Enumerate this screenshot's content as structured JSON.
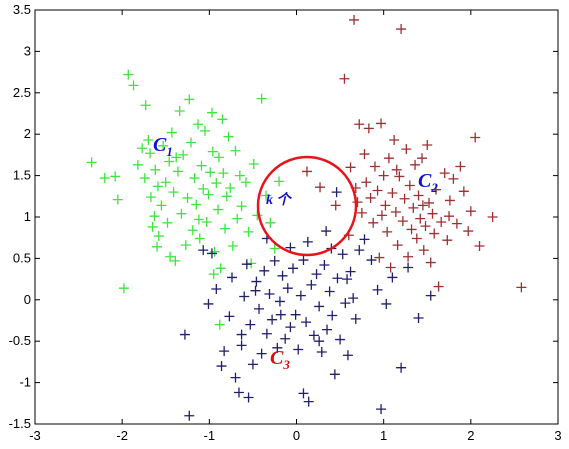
{
  "chart_data": {
    "type": "scatter",
    "title": "",
    "xlabel": "",
    "ylabel": "",
    "xlim": [
      -3,
      3
    ],
    "ylim": [
      -1.5,
      3.5
    ],
    "x_ticks": [
      "-3",
      "-2",
      "-1",
      "0",
      "1",
      "2",
      "3"
    ],
    "y_ticks": [
      "-1.5",
      "-1",
      "-0.5",
      "0",
      "0.5",
      "1",
      "1.5",
      "2",
      "2.5",
      "3",
      "3.5"
    ],
    "grid": false,
    "marker": "+",
    "series": [
      {
        "color": "#3ee53e",
        "points": [
          [
            -2.35,
            1.66
          ],
          [
            -2.2,
            1.47
          ],
          [
            -2.08,
            1.49
          ],
          [
            -2.05,
            1.21
          ],
          [
            -1.98,
            0.14
          ],
          [
            -1.93,
            2.72
          ],
          [
            -1.87,
            2.59
          ],
          [
            -1.77,
            1.83
          ],
          [
            -1.74,
            1.47
          ],
          [
            -1.73,
            2.35
          ],
          [
            -1.7,
            1.93
          ],
          [
            -1.68,
            1.77
          ],
          [
            -1.67,
            1.24
          ],
          [
            -1.65,
            0.88
          ],
          [
            -1.63,
            1.01
          ],
          [
            -1.62,
            1.57
          ],
          [
            -1.59,
            1.37
          ],
          [
            -1.58,
            0.77
          ],
          [
            -1.55,
            1.14
          ],
          [
            -1.53,
            1.86
          ],
          [
            -1.5,
            1.42
          ],
          [
            -1.48,
            0.93
          ],
          [
            -1.46,
            1.67
          ],
          [
            -1.45,
            0.52
          ],
          [
            -1.43,
            2.02
          ],
          [
            -1.41,
            1.3
          ],
          [
            -1.39,
            0.47
          ],
          [
            -1.36,
            1.55
          ],
          [
            -1.34,
            2.28
          ],
          [
            -1.32,
            1.04
          ],
          [
            -1.3,
            1.75
          ],
          [
            -1.27,
            0.66
          ],
          [
            -1.25,
            1.23
          ],
          [
            -1.23,
            2.42
          ],
          [
            -1.21,
            1.9
          ],
          [
            -1.19,
            0.84
          ],
          [
            -1.17,
            1.47
          ],
          [
            -1.15,
            1.15
          ],
          [
            -1.13,
            2.12
          ],
          [
            -1.11,
            0.74
          ],
          [
            -1.09,
            1.62
          ],
          [
            -1.07,
            1.34
          ],
          [
            -1.05,
            2.04
          ],
          [
            -1.03,
            0.94
          ],
          [
            -1.01,
            1.27
          ],
          [
            -0.99,
            1.54
          ],
          [
            -0.97,
            2.26
          ],
          [
            -0.96,
            1.79
          ],
          [
            -0.94,
            0.58
          ],
          [
            -0.92,
            1.41
          ],
          [
            -0.9,
            1.09
          ],
          [
            -0.89,
            1.72
          ],
          [
            -0.87,
            0.38
          ],
          [
            -0.85,
            2.18
          ],
          [
            -0.84,
            1.53
          ],
          [
            -0.82,
            0.86
          ],
          [
            -0.8,
            1.25
          ],
          [
            -0.78,
            1.97
          ],
          [
            -0.76,
            1.35
          ],
          [
            -0.73,
            0.65
          ],
          [
            -0.7,
            1.8
          ],
          [
            -0.68,
            0.98
          ],
          [
            -0.65,
            1.5
          ],
          [
            -0.63,
            1.13
          ],
          [
            -0.58,
            1.42
          ],
          [
            -0.55,
            0.82
          ],
          [
            -0.52,
            0.44
          ],
          [
            -0.49,
            1.64
          ],
          [
            -0.45,
            1.02
          ],
          [
            -0.4,
            2.43
          ],
          [
            -0.35,
            1.26
          ],
          [
            -0.3,
            0.93
          ],
          [
            -0.25,
            0.62
          ],
          [
            -0.2,
            1.43
          ],
          [
            -0.95,
            0.31
          ],
          [
            -0.88,
            -0.3
          ],
          [
            -1.12,
            0.97
          ],
          [
            -1.38,
            1.72
          ],
          [
            -1.82,
            1.63
          ],
          [
            -1.6,
            0.64
          ]
        ]
      },
      {
        "color": "#9e3030",
        "points": [
          [
            0.55,
            2.67
          ],
          [
            0.62,
            1.6
          ],
          [
            0.66,
            3.38
          ],
          [
            0.68,
            1.35
          ],
          [
            0.7,
            1.18
          ],
          [
            0.72,
            2.12
          ],
          [
            0.75,
            1.05
          ],
          [
            0.78,
            1.76
          ],
          [
            0.8,
            1.42
          ],
          [
            0.83,
            2.07
          ],
          [
            0.85,
            1.23
          ],
          [
            0.88,
            0.93
          ],
          [
            0.9,
            1.61
          ],
          [
            0.93,
            1.32
          ],
          [
            0.95,
            0.51
          ],
          [
            0.97,
            2.13
          ],
          [
            1.0,
            1.5
          ],
          [
            1.02,
            1.14
          ],
          [
            1.04,
            0.82
          ],
          [
            1.06,
            1.71
          ],
          [
            1.08,
            0.39
          ],
          [
            1.1,
            1.29
          ],
          [
            1.12,
            1.93
          ],
          [
            1.14,
            1.06
          ],
          [
            1.16,
            0.66
          ],
          [
            1.18,
            1.49
          ],
          [
            1.2,
            3.27
          ],
          [
            1.22,
            0.95
          ],
          [
            1.24,
            1.22
          ],
          [
            1.26,
            1.82
          ],
          [
            1.28,
            0.52
          ],
          [
            1.3,
            1.38
          ],
          [
            1.32,
            0.85
          ],
          [
            1.34,
            1.11
          ],
          [
            1.36,
            1.63
          ],
          [
            1.38,
            0.74
          ],
          [
            1.4,
            1.26
          ],
          [
            1.42,
            0.98
          ],
          [
            1.44,
            1.71
          ],
          [
            1.46,
            0.6
          ],
          [
            1.48,
            0.89
          ],
          [
            1.5,
            1.87
          ],
          [
            1.52,
            1.17
          ],
          [
            1.54,
            0.45
          ],
          [
            1.56,
            1.04
          ],
          [
            1.58,
            0.8
          ],
          [
            1.6,
            1.33
          ],
          [
            1.63,
            0.16
          ],
          [
            1.66,
            0.94
          ],
          [
            1.7,
            1.53
          ],
          [
            1.73,
            0.72
          ],
          [
            1.76,
            1.2
          ],
          [
            1.8,
            1.46
          ],
          [
            1.84,
            0.92
          ],
          [
            1.88,
            1.61
          ],
          [
            1.92,
            1.31
          ],
          [
            1.97,
            0.83
          ],
          [
            2.0,
            1.07
          ],
          [
            2.05,
            1.96
          ],
          [
            2.1,
            0.65
          ],
          [
            2.25,
            1.0
          ],
          [
            2.58,
            0.15
          ],
          [
            1.15,
            1.57
          ],
          [
            0.98,
            1.02
          ],
          [
            1.45,
            1.14
          ],
          [
            1.75,
            1.01
          ],
          [
            0.45,
            1.14
          ],
          [
            0.27,
            1.36
          ],
          [
            0.12,
            1.55
          ],
          [
            0.6,
            0.78
          ]
        ]
      },
      {
        "color": "#1f1f6e",
        "points": [
          [
            -1.28,
            -0.42
          ],
          [
            -1.23,
            -1.4
          ],
          [
            -1.01,
            -0.05
          ],
          [
            -0.97,
            0.56
          ],
          [
            -0.92,
            0.13
          ],
          [
            -0.86,
            -0.8
          ],
          [
            -0.83,
            -0.62
          ],
          [
            -0.77,
            -0.2
          ],
          [
            -0.74,
            0.27
          ],
          [
            -0.7,
            -0.94
          ],
          [
            -0.66,
            -1.12
          ],
          [
            -0.63,
            -0.55
          ],
          [
            -0.6,
            0.04
          ],
          [
            -0.57,
            0.43
          ],
          [
            -0.53,
            -0.3
          ],
          [
            -0.5,
            -0.78
          ],
          [
            -0.46,
            0.22
          ],
          [
            -0.43,
            -0.11
          ],
          [
            -0.4,
            -0.65
          ],
          [
            -0.37,
            0.35
          ],
          [
            -0.34,
            -0.41
          ],
          [
            -0.31,
            0.07
          ],
          [
            -0.28,
            -0.24
          ],
          [
            -0.25,
            0.47
          ],
          [
            -0.22,
            -0.58
          ],
          [
            -0.19,
            -0.02
          ],
          [
            -0.16,
            0.29
          ],
          [
            -0.13,
            -0.47
          ],
          [
            -0.1,
            0.14
          ],
          [
            -0.07,
            -0.33
          ],
          [
            -0.04,
            0.38
          ],
          [
            -0.01,
            -0.18
          ],
          [
            0.02,
            -0.6
          ],
          [
            0.05,
            0.05
          ],
          [
            0.08,
            0.48
          ],
          [
            0.11,
            -0.27
          ],
          [
            0.14,
            -1.23
          ],
          [
            0.17,
            0.18
          ],
          [
            0.2,
            -0.43
          ],
          [
            0.23,
            0.31
          ],
          [
            0.26,
            -0.08
          ],
          [
            0.29,
            -0.63
          ],
          [
            0.32,
            0.42
          ],
          [
            0.35,
            -0.36
          ],
          [
            0.38,
            0.1
          ],
          [
            0.41,
            -0.19
          ],
          [
            0.44,
            -0.9
          ],
          [
            0.47,
            0.26
          ],
          [
            0.5,
            -0.48
          ],
          [
            0.53,
            0.55
          ],
          [
            0.56,
            -0.04
          ],
          [
            0.59,
            -0.67
          ],
          [
            0.62,
            0.34
          ],
          [
            0.65,
            0.02
          ],
          [
            0.68,
            -0.23
          ],
          [
            0.72,
            0.6
          ],
          [
            0.78,
            0.73
          ],
          [
            0.86,
            0.48
          ],
          [
            0.93,
            0.12
          ],
          [
            0.97,
            -1.32
          ],
          [
            1.03,
            -0.05
          ],
          [
            1.1,
            0.27
          ],
          [
            1.2,
            -0.82
          ],
          [
            1.28,
            0.39
          ],
          [
            1.4,
            -0.22
          ],
          [
            1.54,
            0.05
          ],
          [
            -0.63,
            -0.42
          ],
          [
            -0.34,
            0.74
          ],
          [
            0.13,
            0.7
          ],
          [
            -0.07,
            0.63
          ],
          [
            0.34,
            0.83
          ],
          [
            0.46,
            1.3
          ],
          [
            -0.47,
            0.11
          ],
          [
            -0.18,
            -0.18
          ],
          [
            0.26,
            -0.5
          ],
          [
            0.58,
            0.25
          ],
          [
            0.08,
            -1.13
          ],
          [
            -0.55,
            -1.18
          ],
          [
            -1.07,
            0.6
          ],
          [
            0.4,
            0.62
          ]
        ]
      }
    ],
    "annotations": {
      "c1": "C1",
      "c2": "C2",
      "c3": "C3",
      "k_label": "k 个"
    }
  }
}
